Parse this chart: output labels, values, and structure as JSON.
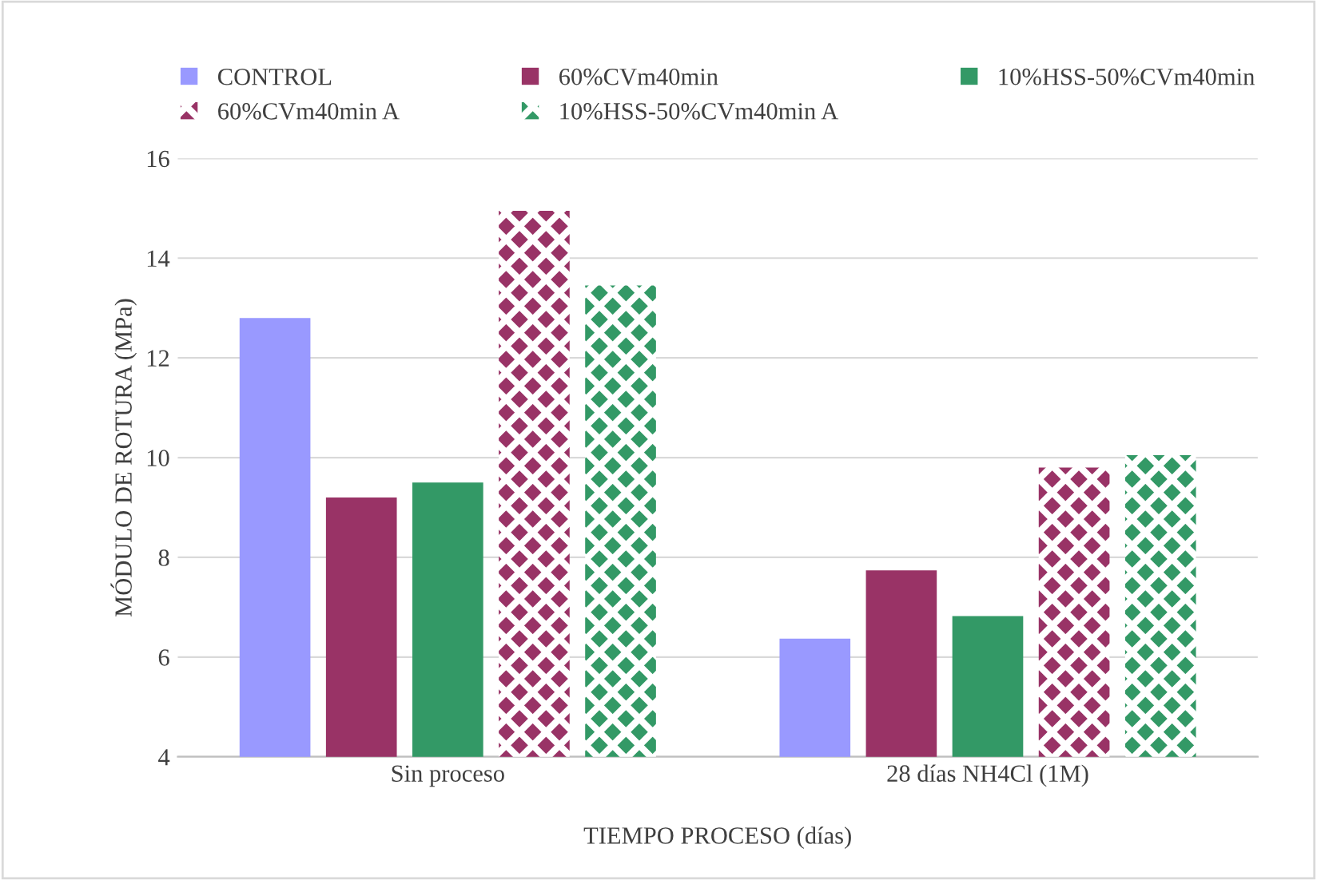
{
  "chart_data": {
    "type": "bar",
    "xlabel": "TIEMPO PROCESO (días)",
    "ylabel": "MÓDULO DE ROTURA (MPa)",
    "categories": [
      "Sin proceso",
      "28 días NH4Cl (1M)"
    ],
    "series": [
      {
        "name": "CONTROL",
        "color": "#9999ff",
        "values": [
          12.8,
          6.37
        ]
      },
      {
        "name": "60%CVm40min",
        "color": "#993366",
        "values": [
          9.2,
          7.74
        ]
      },
      {
        "name": "10%HSS-50%CVm40min",
        "color": "#339966",
        "values": [
          9.5,
          6.82
        ]
      },
      {
        "name": "60%CVm40min A",
        "color": "#993366",
        "values": [
          14.95,
          9.8
        ]
      },
      {
        "name": "10%HSS-50%CVm40min A",
        "color": "#339966",
        "values": [
          13.45,
          10.05
        ]
      }
    ],
    "ylim": [
      4,
      16
    ],
    "yticks": [
      4,
      6,
      8,
      10,
      12,
      14,
      16
    ],
    "grid": "y",
    "legend": "top"
  }
}
